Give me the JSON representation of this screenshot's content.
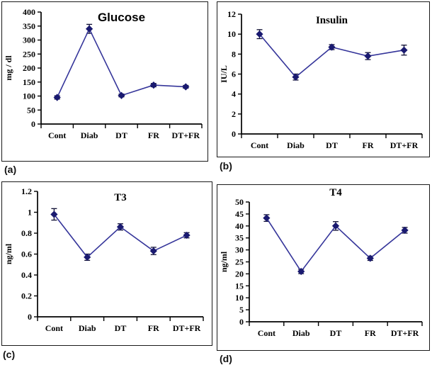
{
  "colors": {
    "line": "#35359a",
    "marker": "#1a1a70",
    "error": "#101035",
    "axis": "#000000",
    "text": "#000000"
  },
  "chart_data": [
    {
      "type": "line",
      "panel_label": "(a)",
      "title": "Glucose",
      "ylabel": "mg / dl",
      "categories": [
        "Cont",
        "Diab",
        "DT",
        "FR",
        "DT+FR"
      ],
      "values": [
        95,
        340,
        102,
        139,
        133
      ],
      "errors": [
        6,
        16,
        5,
        6,
        5
      ],
      "ylim": [
        0,
        400
      ],
      "ytick": 50,
      "grid": false,
      "legend": "none",
      "marker": "diamond"
    },
    {
      "type": "line",
      "panel_label": "(b)",
      "title": "Insulin",
      "ylabel": "IU/L",
      "categories": [
        "Cont",
        "Diab",
        "DT",
        "FR",
        "DT+FR"
      ],
      "values": [
        10.0,
        5.7,
        8.7,
        7.8,
        8.4
      ],
      "errors": [
        0.45,
        0.3,
        0.25,
        0.35,
        0.5
      ],
      "ylim": [
        0,
        12
      ],
      "ytick": 2,
      "grid": false,
      "legend": "none",
      "marker": "diamond"
    },
    {
      "type": "line",
      "panel_label": "(c)",
      "title": "T3",
      "ylabel": "ng/ml",
      "categories": [
        "Cont",
        "Diab",
        "DT",
        "FR",
        "DT+FR"
      ],
      "values": [
        0.98,
        0.57,
        0.86,
        0.63,
        0.78
      ],
      "errors": [
        0.055,
        0.03,
        0.03,
        0.035,
        0.025
      ],
      "ylim": [
        0,
        1.2
      ],
      "ytick": 0.2,
      "grid": false,
      "legend": "none",
      "marker": "diamond"
    },
    {
      "type": "line",
      "panel_label": "(d)",
      "title": "T4",
      "ylabel": "ng/ml",
      "categories": [
        "Cont",
        "Diab",
        "DT",
        "FR",
        "DT+FR"
      ],
      "values": [
        43.3,
        21.0,
        40.0,
        26.5,
        38.2
      ],
      "errors": [
        1.4,
        0.9,
        1.8,
        0.9,
        1.2
      ],
      "ylim": [
        0,
        50
      ],
      "ytick": 5,
      "grid": false,
      "legend": "none",
      "marker": "diamond"
    }
  ]
}
